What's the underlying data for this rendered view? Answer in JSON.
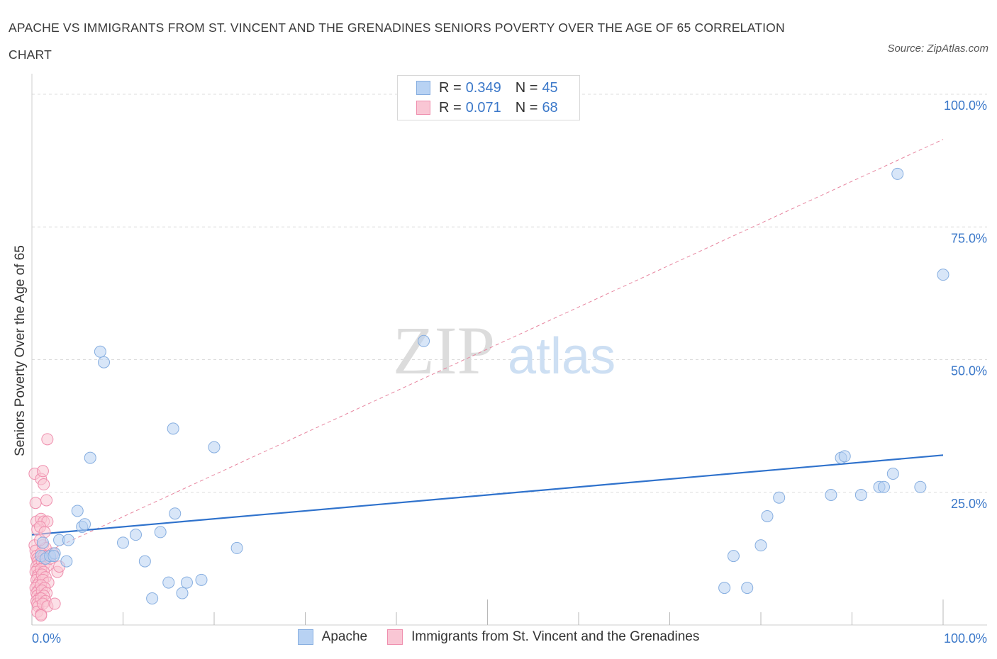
{
  "title": "APACHE VS IMMIGRANTS FROM ST. VINCENT AND THE GRENADINES SENIORS POVERTY OVER THE AGE OF 65 CORRELATION CHART",
  "source": "Source: ZipAtlas.com",
  "watermark": {
    "zip": "ZIP",
    "atlas": "atlas"
  },
  "legend": {
    "series1": {
      "r_label": "R = ",
      "r_value": "0.349",
      "n_label": "N = ",
      "n_value": "45"
    },
    "series2": {
      "r_label": "R = ",
      "r_value": "0.071",
      "n_label": "N = ",
      "n_value": "68"
    }
  },
  "colors": {
    "blue_fill": "#b8d2f3",
    "blue_stroke": "#86aee0",
    "blue_line": "#2f72cc",
    "pink_fill": "#f9c6d4",
    "pink_stroke": "#ef8fae",
    "pink_line": "#e7859f",
    "axis_label": "#3b78c9",
    "grid": "#dcdcdc"
  },
  "chart_data": {
    "type": "scatter",
    "title": "APACHE VS IMMIGRANTS FROM ST. VINCENT AND THE GRENADINES SENIORS POVERTY OVER THE AGE OF 65 CORRELATION CHART",
    "xlabel": "",
    "ylabel": "Seniors Poverty Over the Age of 65",
    "xlim": [
      0,
      100
    ],
    "ylim": [
      0,
      100
    ],
    "x_tick_labels": [
      {
        "value": 0,
        "label": "0.0%"
      },
      {
        "value": 100,
        "label": "100.0%"
      }
    ],
    "y_tick_labels": [
      {
        "value": 25,
        "label": "25.0%"
      },
      {
        "value": 50,
        "label": "50.0%"
      },
      {
        "value": 75,
        "label": "75.0%"
      },
      {
        "value": 100,
        "label": "100.0%"
      }
    ],
    "x_minor_ticks": [
      0,
      10,
      20,
      30,
      40,
      50,
      60,
      70,
      80,
      90,
      100
    ],
    "series": [
      {
        "name": "Apache",
        "color": "blue",
        "points": [
          [
            1.0,
            13.0
          ],
          [
            1.5,
            12.5
          ],
          [
            2.0,
            13.0
          ],
          [
            2.5,
            13.5
          ],
          [
            3.0,
            16.0
          ],
          [
            3.8,
            12.0
          ],
          [
            4.0,
            16.0
          ],
          [
            5.0,
            21.5
          ],
          [
            5.5,
            18.5
          ],
          [
            5.8,
            19.0
          ],
          [
            6.4,
            31.5
          ],
          [
            7.5,
            51.5
          ],
          [
            7.9,
            49.5
          ],
          [
            10.0,
            15.5
          ],
          [
            11.4,
            17.0
          ],
          [
            12.4,
            12.0
          ],
          [
            13.2,
            5.0
          ],
          [
            14.1,
            17.5
          ],
          [
            15.0,
            8.0
          ],
          [
            15.5,
            37.0
          ],
          [
            15.7,
            21.0
          ],
          [
            16.5,
            6.0
          ],
          [
            17.0,
            8.0
          ],
          [
            18.6,
            8.5
          ],
          [
            20.0,
            33.5
          ],
          [
            22.5,
            14.5
          ],
          [
            43.0,
            53.5
          ],
          [
            76.0,
            7.0
          ],
          [
            77.0,
            13.0
          ],
          [
            78.5,
            7.0
          ],
          [
            80.0,
            15.0
          ],
          [
            80.7,
            20.5
          ],
          [
            82.0,
            24.0
          ],
          [
            87.7,
            24.5
          ],
          [
            88.8,
            31.5
          ],
          [
            89.2,
            31.8
          ],
          [
            91.0,
            24.5
          ],
          [
            93.0,
            26.0
          ],
          [
            93.5,
            26.0
          ],
          [
            94.5,
            28.5
          ],
          [
            95.0,
            85.0
          ],
          [
            97.5,
            26.0
          ],
          [
            100.0,
            66.0
          ],
          [
            1.2,
            15.5
          ],
          [
            2.4,
            13.0
          ]
        ],
        "trend": {
          "x": [
            0,
            100
          ],
          "y": [
            17.0,
            32.0
          ]
        }
      },
      {
        "name": "Immigrants from St. Vincent and the Grenadines",
        "color": "pink",
        "points": [
          [
            0.3,
            28.5
          ],
          [
            0.4,
            23.0
          ],
          [
            0.5,
            19.5
          ],
          [
            0.6,
            18.0
          ],
          [
            0.3,
            15.0
          ],
          [
            0.4,
            14.0
          ],
          [
            0.5,
            13.0
          ],
          [
            0.6,
            12.5
          ],
          [
            0.7,
            12.0
          ],
          [
            0.8,
            11.5
          ],
          [
            0.5,
            11.0
          ],
          [
            0.6,
            10.5
          ],
          [
            0.4,
            10.0
          ],
          [
            0.7,
            9.5
          ],
          [
            0.6,
            9.0
          ],
          [
            0.5,
            8.5
          ],
          [
            0.8,
            8.0
          ],
          [
            0.6,
            7.5
          ],
          [
            0.4,
            7.0
          ],
          [
            0.7,
            6.5
          ],
          [
            0.5,
            6.0
          ],
          [
            0.6,
            5.5
          ],
          [
            0.8,
            5.0
          ],
          [
            0.5,
            4.5
          ],
          [
            0.6,
            4.0
          ],
          [
            0.7,
            3.5
          ],
          [
            0.6,
            2.5
          ],
          [
            1.0,
            2.0
          ],
          [
            1.0,
            27.5
          ],
          [
            1.2,
            29.0
          ],
          [
            1.3,
            26.5
          ],
          [
            1.6,
            23.5
          ],
          [
            1.7,
            35.0
          ],
          [
            1.0,
            20.0
          ],
          [
            1.3,
            19.5
          ],
          [
            1.7,
            19.5
          ],
          [
            0.9,
            18.5
          ],
          [
            1.2,
            15.0
          ],
          [
            1.5,
            14.5
          ],
          [
            1.0,
            13.5
          ],
          [
            1.3,
            13.0
          ],
          [
            1.8,
            13.0
          ],
          [
            1.1,
            12.0
          ],
          [
            1.4,
            11.5
          ],
          [
            1.6,
            11.0
          ],
          [
            1.0,
            10.5
          ],
          [
            1.3,
            10.0
          ],
          [
            1.1,
            9.5
          ],
          [
            1.5,
            9.0
          ],
          [
            1.2,
            8.5
          ],
          [
            1.8,
            8.0
          ],
          [
            1.0,
            7.5
          ],
          [
            1.4,
            7.0
          ],
          [
            1.1,
            6.5
          ],
          [
            1.6,
            6.0
          ],
          [
            1.3,
            5.5
          ],
          [
            1.0,
            5.0
          ],
          [
            1.5,
            4.5
          ],
          [
            1.2,
            4.0
          ],
          [
            1.7,
            3.5
          ],
          [
            2.5,
            4.0
          ],
          [
            2.8,
            10.0
          ],
          [
            3.0,
            11.0
          ],
          [
            1.0,
            1.8
          ],
          [
            2.0,
            12.5
          ],
          [
            2.3,
            13.5
          ],
          [
            0.9,
            16.0
          ],
          [
            1.4,
            17.5
          ]
        ],
        "trend": {
          "x": [
            0,
            100
          ],
          "y": [
            12.5,
            91.5
          ]
        }
      }
    ]
  },
  "y_axis_title": "Seniors Poverty Over the Age of 65"
}
